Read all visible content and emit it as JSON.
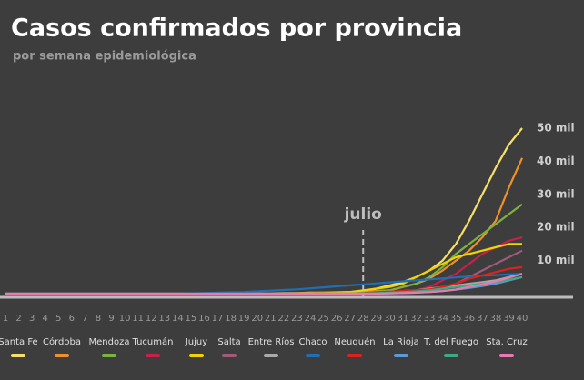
{
  "chart_data": {
    "type": "line",
    "title": "Casos confirmados por provincia",
    "subtitle": "por semana epidemiológica",
    "x": [
      1,
      2,
      3,
      4,
      5,
      6,
      7,
      8,
      9,
      10,
      11,
      12,
      13,
      14,
      15,
      16,
      17,
      18,
      19,
      20,
      21,
      22,
      23,
      24,
      25,
      26,
      27,
      28,
      29,
      30,
      31,
      32,
      33,
      34,
      35,
      36,
      37,
      38,
      39,
      40
    ],
    "xlim": [
      1,
      40
    ],
    "ylim": [
      0,
      55000
    ],
    "yticks": [
      {
        "value": 10000,
        "label": "10 mil"
      },
      {
        "value": 20000,
        "label": "20 mil"
      },
      {
        "value": 30000,
        "label": "30 mil"
      },
      {
        "value": 40000,
        "label": "40 mil"
      },
      {
        "value": 50000,
        "label": "50 mil"
      }
    ],
    "annotations": [
      {
        "text": "julio",
        "x": 28
      }
    ],
    "series": [
      {
        "name": "Santa Fe",
        "color": "#f7e06a",
        "values": [
          0,
          0,
          0,
          0,
          0,
          0,
          0,
          0,
          0,
          0,
          0,
          0,
          0,
          0,
          0,
          0,
          0,
          0,
          0,
          100,
          100,
          200,
          200,
          300,
          300,
          400,
          500,
          800,
          1500,
          2500,
          3500,
          5000,
          7000,
          10000,
          15000,
          22000,
          30000,
          38000,
          45000,
          50000
        ]
      },
      {
        "name": "Córdoba",
        "color": "#f0902a",
        "values": [
          0,
          0,
          0,
          0,
          0,
          0,
          0,
          0,
          0,
          0,
          0,
          0,
          0,
          0,
          0,
          0,
          0,
          0,
          0,
          100,
          100,
          100,
          200,
          200,
          300,
          300,
          400,
          600,
          800,
          1000,
          2000,
          3000,
          4500,
          7000,
          10000,
          13000,
          17000,
          22000,
          32000,
          41000
        ]
      },
      {
        "name": "Mendoza",
        "color": "#7bb33f",
        "values": [
          0,
          0,
          0,
          0,
          0,
          0,
          0,
          0,
          0,
          0,
          0,
          0,
          0,
          0,
          0,
          0,
          0,
          0,
          0,
          0,
          0,
          0,
          0,
          100,
          100,
          100,
          200,
          300,
          600,
          1000,
          2000,
          3000,
          5000,
          8000,
          12000,
          15000,
          18000,
          21000,
          24000,
          27000
        ]
      },
      {
        "name": "Tucumán",
        "color": "#c8204a",
        "values": [
          0,
          0,
          0,
          0,
          0,
          0,
          0,
          0,
          0,
          0,
          0,
          0,
          0,
          0,
          0,
          0,
          0,
          0,
          0,
          0,
          0,
          0,
          0,
          0,
          0,
          0,
          0,
          100,
          200,
          400,
          600,
          1000,
          2000,
          4000,
          6000,
          9000,
          12000,
          14000,
          16000,
          17000
        ]
      },
      {
        "name": "Jujuy",
        "color": "#f2d400",
        "values": [
          0,
          0,
          0,
          0,
          0,
          0,
          0,
          0,
          0,
          0,
          0,
          0,
          0,
          0,
          0,
          0,
          0,
          0,
          0,
          0,
          0,
          0,
          100,
          100,
          200,
          300,
          500,
          1000,
          1500,
          2000,
          3000,
          5000,
          7000,
          9000,
          11000,
          12000,
          13000,
          14000,
          15000,
          15000
        ]
      },
      {
        "name": "Salta",
        "color": "#a05a7a",
        "values": [
          0,
          0,
          0,
          0,
          0,
          0,
          0,
          0,
          0,
          0,
          0,
          0,
          0,
          0,
          0,
          0,
          0,
          0,
          0,
          0,
          0,
          0,
          0,
          0,
          0,
          0,
          0,
          100,
          200,
          300,
          500,
          800,
          1200,
          2000,
          3000,
          5000,
          7000,
          9000,
          11000,
          13000
        ]
      },
      {
        "name": "Entre Ríos",
        "color": "#aaaaaa",
        "values": [
          0,
          0,
          0,
          0,
          0,
          0,
          0,
          0,
          0,
          0,
          0,
          0,
          0,
          0,
          0,
          0,
          0,
          0,
          0,
          0,
          0,
          0,
          0,
          0,
          0,
          0,
          0,
          200,
          300,
          500,
          800,
          1000,
          1500,
          2000,
          2500,
          3000,
          3500,
          4000,
          5000,
          6000
        ]
      },
      {
        "name": "Chaco",
        "color": "#1f6fb5",
        "values": [
          0,
          0,
          0,
          0,
          0,
          0,
          0,
          0,
          0,
          0,
          0,
          0,
          0,
          0,
          100,
          200,
          300,
          400,
          500,
          700,
          900,
          1100,
          1300,
          1600,
          1900,
          2200,
          2500,
          2800,
          3100,
          3400,
          3700,
          4000,
          4300,
          4600,
          4900,
          5200,
          5400,
          5600,
          5800,
          6000
        ]
      },
      {
        "name": "Neuquén",
        "color": "#e0201a",
        "values": [
          0,
          0,
          0,
          0,
          0,
          0,
          0,
          0,
          0,
          0,
          0,
          0,
          0,
          0,
          0,
          0,
          0,
          0,
          0,
          0,
          0,
          0,
          0,
          0,
          0,
          0,
          0,
          200,
          400,
          600,
          800,
          1000,
          1300,
          2000,
          3000,
          4500,
          5500,
          6500,
          7500,
          8000
        ]
      },
      {
        "name": "La Rioja",
        "color": "#5b9bd5",
        "values": [
          0,
          0,
          0,
          0,
          0,
          0,
          0,
          0,
          0,
          0,
          0,
          0,
          0,
          0,
          0,
          0,
          0,
          0,
          0,
          0,
          0,
          0,
          0,
          0,
          0,
          0,
          0,
          0,
          0,
          100,
          200,
          300,
          500,
          800,
          1200,
          1700,
          2300,
          3000,
          4000,
          5000
        ]
      },
      {
        "name": "T. del Fuego",
        "color": "#3daa7f",
        "values": [
          0,
          0,
          0,
          0,
          0,
          0,
          0,
          0,
          0,
          0,
          0,
          0,
          0,
          0,
          0,
          0,
          0,
          0,
          0,
          0,
          0,
          0,
          0,
          0,
          0,
          0,
          0,
          100,
          200,
          300,
          500,
          700,
          1000,
          1500,
          2000,
          2500,
          3000,
          3500,
          4200,
          5000
        ]
      },
      {
        "name": "Sta. Cruz",
        "color": "#e87ab0",
        "values": [
          0,
          0,
          0,
          0,
          0,
          0,
          0,
          0,
          0,
          0,
          0,
          0,
          0,
          0,
          0,
          0,
          0,
          0,
          0,
          0,
          0,
          0,
          0,
          0,
          0,
          0,
          0,
          0,
          0,
          100,
          200,
          300,
          500,
          800,
          1300,
          2000,
          2800,
          3700,
          4800,
          6000
        ]
      }
    ]
  }
}
